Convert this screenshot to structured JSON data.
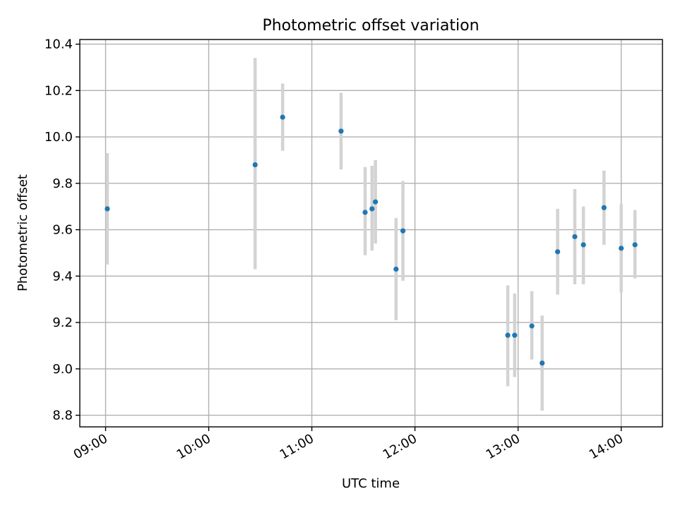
{
  "chart_data": {
    "type": "scatter",
    "title": "Photometric offset variation",
    "xlabel": "UTC time",
    "ylabel": "Photometric offset",
    "x_unit": "hours UTC",
    "xlim": [
      "08:45",
      "14:24"
    ],
    "ylim": [
      8.75,
      10.42
    ],
    "x_ticks": [
      "09:00",
      "10:00",
      "11:00",
      "12:00",
      "13:00",
      "14:00"
    ],
    "y_ticks": [
      "8.8",
      "9.0",
      "9.2",
      "9.4",
      "9.6",
      "9.8",
      "10.0",
      "10.2",
      "10.4"
    ],
    "grid": true,
    "legend": "none",
    "series": [
      {
        "color": "#1f77b4",
        "error_color": "#d3d3d3",
        "points": [
          {
            "x": "09:01",
            "y": 9.69,
            "err_low": 9.45,
            "err_high": 9.93
          },
          {
            "x": "10:27",
            "y": 9.88,
            "err_low": 9.43,
            "err_high": 10.34
          },
          {
            "x": "10:43",
            "y": 10.085,
            "err_low": 9.94,
            "err_high": 10.23
          },
          {
            "x": "11:17",
            "y": 10.025,
            "err_low": 9.86,
            "err_high": 10.19
          },
          {
            "x": "11:31",
            "y": 9.675,
            "err_low": 9.49,
            "err_high": 9.87
          },
          {
            "x": "11:35",
            "y": 9.69,
            "err_low": 9.51,
            "err_high": 9.875
          },
          {
            "x": "11:37",
            "y": 9.72,
            "err_low": 9.54,
            "err_high": 9.9
          },
          {
            "x": "11:49",
            "y": 9.43,
            "err_low": 9.21,
            "err_high": 9.65
          },
          {
            "x": "11:53",
            "y": 9.595,
            "err_low": 9.38,
            "err_high": 9.81
          },
          {
            "x": "12:54",
            "y": 9.145,
            "err_low": 8.925,
            "err_high": 9.36
          },
          {
            "x": "12:58",
            "y": 9.145,
            "err_low": 8.965,
            "err_high": 9.325
          },
          {
            "x": "13:08",
            "y": 9.185,
            "err_low": 9.04,
            "err_high": 9.335
          },
          {
            "x": "13:14",
            "y": 9.025,
            "err_low": 8.82,
            "err_high": 9.23
          },
          {
            "x": "13:23",
            "y": 9.505,
            "err_low": 9.32,
            "err_high": 9.69
          },
          {
            "x": "13:33",
            "y": 9.57,
            "err_low": 9.365,
            "err_high": 9.775
          },
          {
            "x": "13:38",
            "y": 9.535,
            "err_low": 9.365,
            "err_high": 9.7
          },
          {
            "x": "13:50",
            "y": 9.695,
            "err_low": 9.535,
            "err_high": 9.855
          },
          {
            "x": "14:00",
            "y": 9.52,
            "err_low": 9.33,
            "err_high": 9.71
          },
          {
            "x": "14:08",
            "y": 9.535,
            "err_low": 9.39,
            "err_high": 9.685
          }
        ]
      }
    ]
  }
}
